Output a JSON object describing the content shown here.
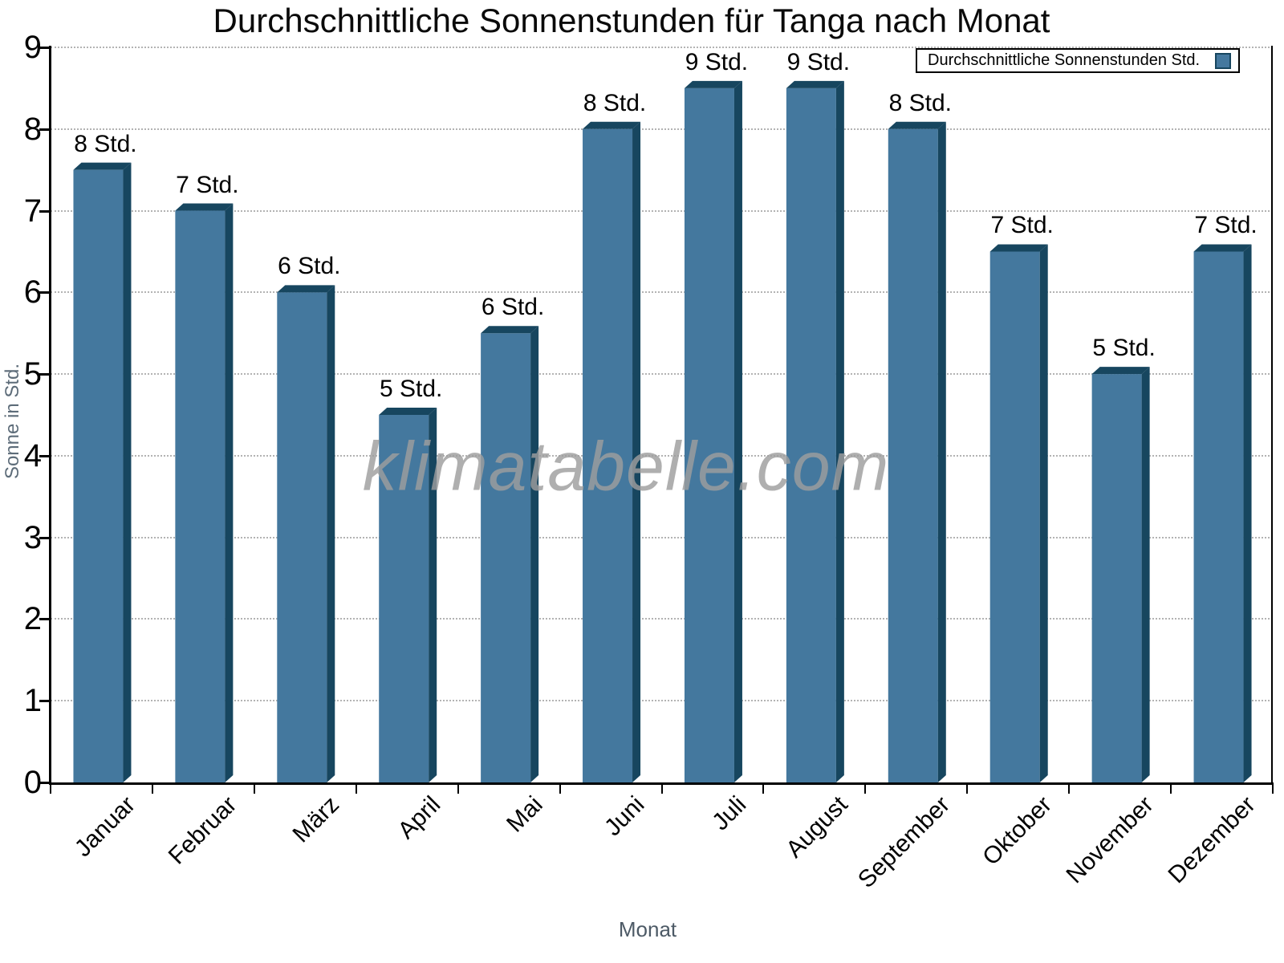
{
  "chart_data": {
    "type": "bar",
    "title": "Durchschnittliche Sonnenstunden für Tanga nach Monat",
    "xlabel": "Monat",
    "ylabel": "Sonne in Std.",
    "categories": [
      "Januar",
      "Februar",
      "März",
      "April",
      "Mai",
      "Juni",
      "Juli",
      "August",
      "September",
      "Oktober",
      "November",
      "Dezember"
    ],
    "values": [
      7.5,
      7.0,
      6.0,
      4.5,
      5.5,
      8.0,
      8.5,
      8.5,
      8.0,
      6.5,
      5.0,
      6.5
    ],
    "bar_labels": [
      "8 Std.",
      "7 Std.",
      "6 Std.",
      "5 Std.",
      "6 Std.",
      "8 Std.",
      "9 Std.",
      "9 Std.",
      "8 Std.",
      "7 Std.",
      "5 Std.",
      "7 Std."
    ],
    "ylim": [
      0,
      9
    ],
    "y_ticks": [
      0,
      1,
      2,
      3,
      4,
      5,
      6,
      7,
      8,
      9
    ],
    "grid": "horizontal dotted",
    "legend": {
      "label": "Durchschnittliche Sonnenstunden Std.",
      "position": "top-right"
    },
    "watermark": "klimatabelle.com",
    "colors": {
      "bar_face": "#44789E",
      "bar_side": "#17465F",
      "grid": "#b3b3b3",
      "axis": "#000000",
      "axis_title": "#4d5a66",
      "watermark": "#9e9e9e"
    }
  }
}
